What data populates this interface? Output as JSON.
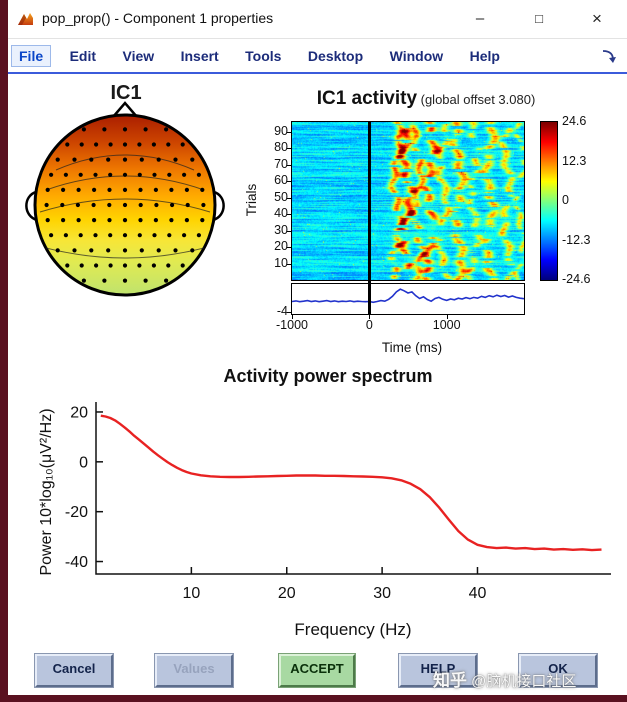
{
  "window": {
    "title": "pop_prop() - Component 1 properties",
    "minimize": "–",
    "maximize": "□",
    "close": "×"
  },
  "menu": {
    "items": [
      "File",
      "Edit",
      "View",
      "Insert",
      "Tools",
      "Desktop",
      "Window",
      "Help"
    ]
  },
  "topo": {
    "title": "IC1"
  },
  "erpimage": {
    "title": "IC1 activity",
    "offset_note": " (global offset 3.080)",
    "ylabel": "Trials",
    "xlabel": "Time (ms)"
  },
  "spectrum": {
    "title": "Activity power spectrum",
    "ylabel": "Power 10*log₁₀(μV²/Hz)",
    "xlabel": "Frequency (Hz)"
  },
  "buttons": [
    {
      "label": "Cancel",
      "state": "enabled"
    },
    {
      "label": "Values",
      "state": "disabled"
    },
    {
      "label": "ACCEPT",
      "state": "accept"
    },
    {
      "label": "HELP",
      "state": "enabled"
    },
    {
      "label": "OK",
      "state": "enabled"
    }
  ],
  "watermark": {
    "brand": "知乎",
    "handle": " @脑机接口社区"
  },
  "colors": {
    "accent_blue": "#3b5bdb",
    "button_face": "#b9c5dd",
    "accept_green": "#a8d9a2",
    "erp_trace_blue": "#2233cc",
    "spectrum_red": "#e82222",
    "desktop_maroon": "#5a1120"
  },
  "chart_data": [
    {
      "type": "heatmap",
      "name": "erp-image",
      "title": "IC1 activity (global offset 3.080)",
      "ylabel": "Trials",
      "xlabel": "Time (ms)",
      "xlim": [
        -1000,
        2000
      ],
      "ylim": [
        0,
        96
      ],
      "yticks": [
        10,
        20,
        30,
        40,
        50,
        60,
        70,
        80,
        90
      ],
      "xticks": [
        -1000,
        0,
        1000
      ],
      "colorbar_ticks": [
        24.6,
        12.3,
        0,
        -12.3,
        -24.6
      ],
      "clim": [
        -24.6,
        24.6
      ],
      "event_line_ms": 0,
      "seed": 7,
      "background_level": -8,
      "streaks_ms": [
        {
          "t": 350,
          "amp": 23,
          "w": 4
        },
        {
          "t": 480,
          "amp": 27,
          "w": 5
        },
        {
          "t": 620,
          "amp": 21,
          "w": 4
        },
        {
          "t": 780,
          "amp": 25,
          "w": 5
        },
        {
          "t": 950,
          "amp": 18,
          "w": 4
        },
        {
          "t": 1150,
          "amp": 22,
          "w": 5
        },
        {
          "t": 1350,
          "amp": 17,
          "w": 4
        },
        {
          "t": 1550,
          "amp": 21,
          "w": 5
        },
        {
          "t": 1780,
          "amp": 19,
          "w": 4
        },
        {
          "t": 1950,
          "amp": 16,
          "w": 3
        }
      ]
    },
    {
      "type": "line",
      "name": "erp-trace",
      "xlim": [
        -1000,
        2000
      ],
      "ylim": [
        -4.5,
        6.5
      ],
      "ytick": -4,
      "points": [
        [
          -1000,
          0.1
        ],
        [
          -950,
          0.3
        ],
        [
          -900,
          0.0
        ],
        [
          -850,
          0.2
        ],
        [
          -800,
          0.4
        ],
        [
          -750,
          0.1
        ],
        [
          -700,
          0.3
        ],
        [
          -650,
          0.0
        ],
        [
          -600,
          0.2
        ],
        [
          -550,
          0.4
        ],
        [
          -500,
          0.1
        ],
        [
          -450,
          0.3
        ],
        [
          -400,
          0.0
        ],
        [
          -350,
          0.2
        ],
        [
          -300,
          0.1
        ],
        [
          -250,
          0.3
        ],
        [
          -200,
          0.0
        ],
        [
          -150,
          0.2
        ],
        [
          -100,
          0.1
        ],
        [
          -50,
          0.0
        ],
        [
          0,
          0.1
        ],
        [
          50,
          -0.2
        ],
        [
          100,
          0.1
        ],
        [
          150,
          0.4
        ],
        [
          200,
          0.2
        ],
        [
          250,
          0.9
        ],
        [
          300,
          2.0
        ],
        [
          350,
          3.6
        ],
        [
          400,
          4.6
        ],
        [
          450,
          4.0
        ],
        [
          500,
          3.2
        ],
        [
          550,
          3.6
        ],
        [
          600,
          2.2
        ],
        [
          650,
          1.2
        ],
        [
          700,
          1.8
        ],
        [
          750,
          0.8
        ],
        [
          800,
          0.2
        ],
        [
          850,
          1.2
        ],
        [
          900,
          1.6
        ],
        [
          950,
          0.9
        ],
        [
          1000,
          0.5
        ],
        [
          1050,
          1.0
        ],
        [
          1100,
          0.7
        ],
        [
          1150,
          1.3
        ],
        [
          1200,
          1.0
        ],
        [
          1250,
          1.5
        ],
        [
          1300,
          1.1
        ],
        [
          1350,
          1.6
        ],
        [
          1400,
          1.3
        ],
        [
          1450,
          2.0
        ],
        [
          1500,
          1.6
        ],
        [
          1550,
          2.2
        ],
        [
          1600,
          1.8
        ],
        [
          1650,
          2.4
        ],
        [
          1700,
          1.9
        ],
        [
          1750,
          2.3
        ],
        [
          1800,
          1.7
        ],
        [
          1850,
          2.1
        ],
        [
          1900,
          1.6
        ],
        [
          1950,
          1.3
        ],
        [
          2000,
          1.1
        ]
      ]
    },
    {
      "type": "line",
      "name": "power-spectrum",
      "title": "Activity power spectrum",
      "xlabel": "Frequency (Hz)",
      "ylabel": "Power 10*log10(uV2/Hz)",
      "xlim": [
        0,
        54
      ],
      "ylim": [
        -45,
        24
      ],
      "xticks": [
        10,
        20,
        30,
        40
      ],
      "yticks": [
        20,
        0,
        -20,
        -40
      ],
      "points": [
        [
          0.5,
          18.5
        ],
        [
          1,
          18.2
        ],
        [
          1.5,
          17.6
        ],
        [
          2,
          16.6
        ],
        [
          2.5,
          15.3
        ],
        [
          3,
          13.8
        ],
        [
          3.5,
          12.2
        ],
        [
          4,
          10.5
        ],
        [
          4.5,
          8.9
        ],
        [
          5,
          7.3
        ],
        [
          5.5,
          5.7
        ],
        [
          6,
          4.1
        ],
        [
          6.5,
          2.6
        ],
        [
          7,
          1.2
        ],
        [
          7.5,
          -0.1
        ],
        [
          8,
          -1.3
        ],
        [
          8.5,
          -2.4
        ],
        [
          9,
          -3.3
        ],
        [
          9.5,
          -4.1
        ],
        [
          10,
          -4.7
        ],
        [
          11,
          -5.4
        ],
        [
          12,
          -5.8
        ],
        [
          13,
          -6.0
        ],
        [
          14,
          -6.1
        ],
        [
          15,
          -6.1
        ],
        [
          16,
          -6.0
        ],
        [
          17,
          -5.9
        ],
        [
          18,
          -5.8
        ],
        [
          19,
          -5.7
        ],
        [
          20,
          -5.6
        ],
        [
          21,
          -5.5
        ],
        [
          22,
          -5.5
        ],
        [
          23,
          -5.5
        ],
        [
          24,
          -5.6
        ],
        [
          25,
          -5.6
        ],
        [
          26,
          -5.7
        ],
        [
          27,
          -5.8
        ],
        [
          28,
          -5.9
        ],
        [
          29,
          -6.0
        ],
        [
          30,
          -6.2
        ],
        [
          31,
          -6.6
        ],
        [
          32,
          -7.4
        ],
        [
          33,
          -8.8
        ],
        [
          34,
          -11.0
        ],
        [
          35,
          -14.2
        ],
        [
          36,
          -18.4
        ],
        [
          37,
          -23.2
        ],
        [
          38,
          -27.8
        ],
        [
          39,
          -31.2
        ],
        [
          40,
          -33.3
        ],
        [
          41,
          -34.2
        ],
        [
          42,
          -34.6
        ],
        [
          43,
          -34.4
        ],
        [
          44,
          -34.8
        ],
        [
          45,
          -34.6
        ],
        [
          46,
          -35.0
        ],
        [
          47,
          -34.8
        ],
        [
          48,
          -35.2
        ],
        [
          49,
          -35.0
        ],
        [
          50,
          -35.3
        ],
        [
          51,
          -35.1
        ],
        [
          52,
          -35.4
        ],
        [
          53,
          -35.2
        ]
      ]
    }
  ]
}
